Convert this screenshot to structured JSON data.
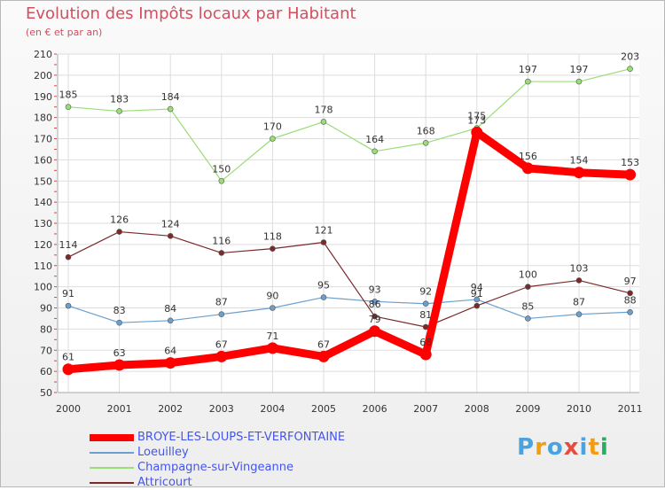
{
  "header": {
    "title": "Evolution des Impôts locaux par Habitant",
    "subtitle": "(en € et par an)"
  },
  "chart_data": {
    "type": "line",
    "title": "Evolution des Impôts locaux par Habitant",
    "subtitle": "(en € et par an)",
    "xlabel": "",
    "ylabel": "",
    "x": [
      "2000",
      "2001",
      "2002",
      "2003",
      "2004",
      "2005",
      "2006",
      "2007",
      "2008",
      "2009",
      "2010",
      "2011"
    ],
    "ylim": [
      50,
      210
    ],
    "yticks": [
      50,
      60,
      70,
      80,
      90,
      100,
      110,
      120,
      130,
      140,
      150,
      160,
      170,
      180,
      190,
      200,
      210
    ],
    "grid": true,
    "legend_position": "bottom-left",
    "series": [
      {
        "name": "BROYE-LES-LOUPS-ET-VERFONTAINE",
        "color": "#ff0000",
        "values": [
          61,
          63,
          64,
          67,
          71,
          67,
          79,
          68,
          173,
          156,
          154,
          153
        ]
      },
      {
        "name": "Loeuilley",
        "color": "#6b9fcf",
        "values": [
          91,
          83,
          84,
          87,
          90,
          95,
          93,
          92,
          94,
          85,
          87,
          88
        ]
      },
      {
        "name": "Champagne-sur-Vingeanne",
        "color": "#99dd77",
        "values": [
          185,
          183,
          184,
          150,
          170,
          178,
          164,
          168,
          175,
          197,
          197,
          203
        ]
      },
      {
        "name": "Attricourt",
        "color": "#7a2a2a",
        "values": [
          114,
          126,
          124,
          116,
          118,
          121,
          86,
          81,
          91,
          100,
          103,
          97
        ]
      }
    ]
  },
  "logo": {
    "text": "Proxiti",
    "letters": [
      "P",
      "r",
      "o",
      "x",
      "i",
      "t",
      "i"
    ],
    "colors": [
      "#4aa3df",
      "#f39c12",
      "#4aa3df",
      "#e74c3c",
      "#4aa3df",
      "#f39c12",
      "#27ae60"
    ]
  }
}
